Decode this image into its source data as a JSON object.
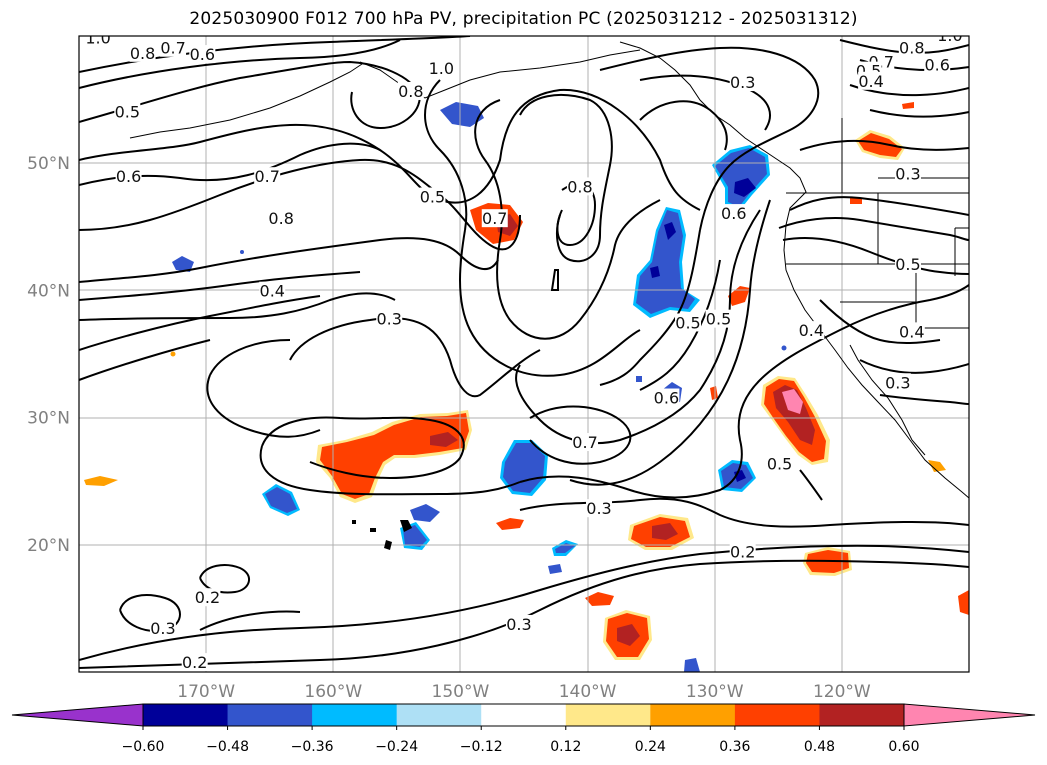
{
  "chart_data": {
    "type": "contour_map",
    "title": "2025030900 F012 700 hPa PV, precipitation PC (2025031212 - 2025031312)",
    "xaxis": {
      "ticks": [
        "170°W",
        "160°W",
        "150°W",
        "140°W",
        "130°W",
        "120°W"
      ],
      "values": [
        -170,
        -160,
        -150,
        -140,
        -130,
        -120
      ],
      "range": [
        -180,
        -110
      ]
    },
    "yaxis": {
      "ticks": [
        "20°N",
        "30°N",
        "40°N",
        "50°N"
      ],
      "values": [
        20,
        30,
        40,
        50
      ],
      "range": [
        10,
        60
      ]
    },
    "grid": true,
    "contour_labels": [
      {
        "text": "1.0",
        "lon": -178.5,
        "lat": 59.8
      },
      {
        "text": "0.8",
        "lon": -175,
        "lat": 58.6
      },
      {
        "text": "0.7",
        "lon": -172.6,
        "lat": 59.0
      },
      {
        "text": "0.6",
        "lon": -170.3,
        "lat": 58.5
      },
      {
        "text": "0.5",
        "lon": -176.2,
        "lat": 54.0
      },
      {
        "text": "0.6",
        "lon": -176.1,
        "lat": 48.9
      },
      {
        "text": "0.7",
        "lon": -165.2,
        "lat": 48.9
      },
      {
        "text": "0.8",
        "lon": -164.1,
        "lat": 45.6
      },
      {
        "text": "0.5",
        "lon": -152.2,
        "lat": 47.3
      },
      {
        "text": "0.4",
        "lon": -164.8,
        "lat": 39.9
      },
      {
        "text": "0.3",
        "lon": -155.6,
        "lat": 37.7
      },
      {
        "text": "0.8",
        "lon": -153.9,
        "lat": 55.6
      },
      {
        "text": "1.0",
        "lon": -151.5,
        "lat": 57.4
      },
      {
        "text": "0.7",
        "lon": -147.3,
        "lat": 45.6
      },
      {
        "text": "0.8",
        "lon": -140.6,
        "lat": 48.1
      },
      {
        "text": "0.3",
        "lon": -127.8,
        "lat": 56.3
      },
      {
        "text": "0.6",
        "lon": -128.5,
        "lat": 46.0
      },
      {
        "text": "0.5",
        "lon": -132.1,
        "lat": 37.4
      },
      {
        "text": "0.5",
        "lon": -129.7,
        "lat": 37.7
      },
      {
        "text": "0.6",
        "lon": -133.8,
        "lat": 31.5
      },
      {
        "text": "0.7",
        "lon": -140.2,
        "lat": 28.0
      },
      {
        "text": "0.3",
        "lon": -139.1,
        "lat": 22.8
      },
      {
        "text": "0.5",
        "lon": -124.9,
        "lat": 26.3
      },
      {
        "text": "0.4",
        "lon": -122.4,
        "lat": 36.8
      },
      {
        "text": "0.4",
        "lon": -114.5,
        "lat": 36.7
      },
      {
        "text": "0.5",
        "lon": -114.8,
        "lat": 42.0
      },
      {
        "text": "0.3",
        "lon": -115.6,
        "lat": 32.7
      },
      {
        "text": "0.3",
        "lon": -114.8,
        "lat": 49.1
      },
      {
        "text": "0.8",
        "lon": -114.5,
        "lat": 59.0
      },
      {
        "text": "1.0",
        "lon": -111.5,
        "lat": 60.0
      },
      {
        "text": "0.7",
        "lon": -116.9,
        "lat": 57.9
      },
      {
        "text": "0.6",
        "lon": -112.5,
        "lat": 57.7
      },
      {
        "text": "0.5",
        "lon": -117.9,
        "lat": 57.2
      },
      {
        "text": "0.4",
        "lon": -117.7,
        "lat": 56.4
      },
      {
        "text": "0.2",
        "lon": -169.9,
        "lat": 15.8
      },
      {
        "text": "0.3",
        "lon": -173.4,
        "lat": 13.4
      },
      {
        "text": "0.2",
        "lon": -170.9,
        "lat": 10.7
      },
      {
        "text": "0.3",
        "lon": -145.4,
        "lat": 13.7
      },
      {
        "text": "0.2",
        "lon": -127.8,
        "lat": 19.4
      }
    ],
    "colorbar": {
      "ticks": [
        "−0.60",
        "−0.48",
        "−0.36",
        "−0.24",
        "−0.12",
        "0.12",
        "0.24",
        "0.36",
        "0.48",
        "0.60"
      ],
      "levels": [
        -0.6,
        -0.48,
        -0.36,
        -0.24,
        -0.12,
        0.12,
        0.24,
        0.36,
        0.48,
        0.6
      ],
      "colors": [
        "#9932cc",
        "#000099",
        "#3355cc",
        "#00bbff",
        "#aee0f5",
        "#ffffff",
        "#ffe88a",
        "#ffa000",
        "#ff4000",
        "#b22222",
        "#ff85b0"
      ],
      "extend": "both"
    }
  }
}
